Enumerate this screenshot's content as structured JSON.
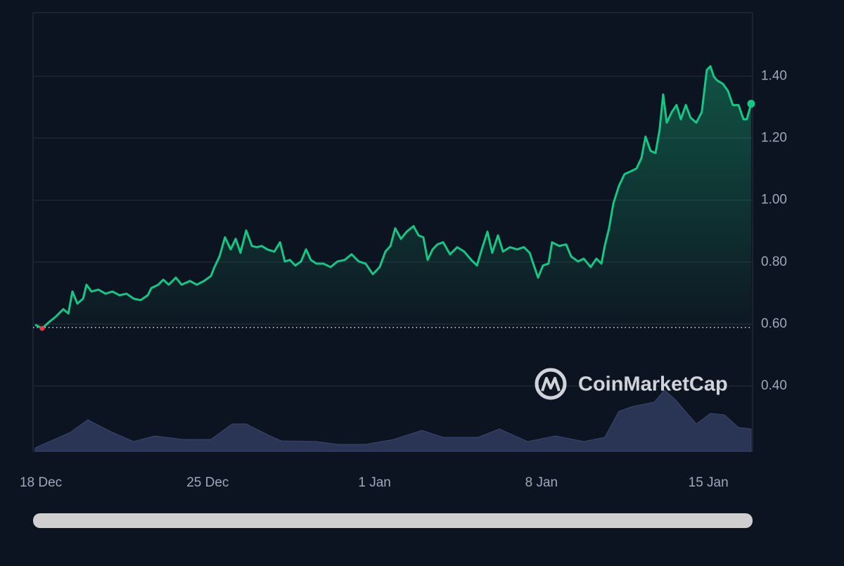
{
  "chart_data": {
    "type": "line",
    "area": true,
    "x": [
      0,
      0.29,
      0.59,
      0.88,
      1.18,
      1.39,
      1.56,
      1.77,
      2.01,
      2.15,
      2.36,
      2.65,
      2.95,
      3.24,
      3.54,
      3.83,
      4.13,
      4.42,
      4.72,
      4.87,
      5.16,
      5.37,
      5.6,
      5.9,
      6.14,
      6.49,
      6.78,
      7.08,
      7.37,
      7.52,
      7.73,
      7.96,
      8.2,
      8.41,
      8.61,
      8.85,
      9.09,
      9.29,
      9.5,
      9.73,
      10.03,
      10.27,
      10.47,
      10.68,
      10.91,
      11.15,
      11.36,
      11.56,
      11.8,
      12.09,
      12.39,
      12.68,
      12.98,
      13.27,
      13.57,
      13.86,
      14.16,
      14.45,
      14.69,
      14.9,
      15.1,
      15.34,
      15.58,
      15.87,
      16.08,
      16.28,
      16.46,
      16.67,
      16.87,
      17.11,
      17.4,
      17.7,
      17.99,
      18.29,
      18.53,
      18.73,
      18.97,
      19.17,
      19.41,
      19.62,
      19.91,
      20.21,
      20.5,
      20.74,
      20.94,
      21.09,
      21.3,
      21.53,
      21.68,
      21.98,
      22.27,
      22.48,
      22.77,
      23.01,
      23.3,
      23.54,
      23.75,
      23.89,
      24.07,
      24.25,
      24.48,
      24.72,
      24.93,
      25.22,
      25.43,
      25.6,
      25.81,
      26.02,
      26.19,
      26.34,
      26.49,
      26.7,
      26.9,
      27.08,
      27.29,
      27.49,
      27.73,
      27.96,
      28.17,
      28.32,
      28.47,
      28.61,
      28.85,
      29.06,
      29.26,
      29.5,
      29.71,
      29.85,
      30.03
    ],
    "series": [
      {
        "color": "#16c784",
        "values": [
          0.598,
          0.586,
          0.607,
          0.625,
          0.648,
          0.634,
          0.705,
          0.666,
          0.682,
          0.727,
          0.705,
          0.711,
          0.698,
          0.705,
          0.693,
          0.698,
          0.682,
          0.677,
          0.693,
          0.716,
          0.727,
          0.743,
          0.727,
          0.75,
          0.727,
          0.739,
          0.727,
          0.739,
          0.755,
          0.784,
          0.818,
          0.88,
          0.841,
          0.875,
          0.83,
          0.902,
          0.852,
          0.848,
          0.852,
          0.841,
          0.834,
          0.864,
          0.802,
          0.807,
          0.789,
          0.802,
          0.841,
          0.807,
          0.795,
          0.795,
          0.784,
          0.802,
          0.807,
          0.825,
          0.802,
          0.795,
          0.761,
          0.784,
          0.834,
          0.852,
          0.909,
          0.875,
          0.898,
          0.916,
          0.886,
          0.88,
          0.807,
          0.841,
          0.857,
          0.864,
          0.825,
          0.848,
          0.834,
          0.807,
          0.789,
          0.841,
          0.898,
          0.83,
          0.886,
          0.834,
          0.848,
          0.841,
          0.848,
          0.83,
          0.784,
          0.75,
          0.789,
          0.795,
          0.864,
          0.852,
          0.857,
          0.818,
          0.802,
          0.811,
          0.784,
          0.811,
          0.795,
          0.852,
          0.909,
          0.989,
          1.045,
          1.084,
          1.091,
          1.102,
          1.136,
          1.205,
          1.159,
          1.152,
          1.227,
          1.341,
          1.25,
          1.284,
          1.307,
          1.261,
          1.307,
          1.266,
          1.25,
          1.284,
          1.42,
          1.432,
          1.398,
          1.386,
          1.375,
          1.352,
          1.307,
          1.307,
          1.261,
          1.261,
          1.311
        ]
      }
    ],
    "reference_line": 0.589,
    "xlim": [
      -0.09,
      30.09
    ],
    "xticks": [
      {
        "value": 0,
        "label": "18 Dec"
      },
      {
        "value": 7,
        "label": "25 Dec"
      },
      {
        "value": 14,
        "label": "1 Jan"
      },
      {
        "value": 21,
        "label": "8 Jan"
      },
      {
        "value": 28,
        "label": "15 Jan"
      }
    ],
    "ylim": [
      0.189,
      1.605
    ],
    "yticks": [
      {
        "value": 0.4,
        "label": "0.40"
      },
      {
        "value": 0.6,
        "label": "0.60"
      },
      {
        "value": 0.8,
        "label": "0.80"
      },
      {
        "value": 1.0,
        "label": "1.00"
      },
      {
        "value": 1.2,
        "label": "1.20"
      },
      {
        "value": 1.4,
        "label": "1.40"
      }
    ],
    "grid": true,
    "volume": {
      "color": "#2a3556",
      "x": [
        0,
        1.47,
        2.21,
        2.65,
        3.24,
        4.13,
        5.01,
        6.19,
        7.37,
        8.26,
        8.85,
        9.73,
        10.32,
        11.8,
        12.68,
        13.86,
        15.04,
        16.22,
        17.11,
        18.58,
        19.47,
        20.65,
        21.83,
        23.01,
        23.89,
        24.48,
        25.07,
        25.96,
        26.4,
        26.84,
        27.73,
        28.32,
        28.91,
        29.5,
        30.03
      ],
      "values": [
        5,
        27,
        45,
        37,
        27,
        14,
        22,
        17,
        17,
        39,
        39,
        24,
        15,
        14,
        10,
        10,
        17,
        30,
        20,
        20,
        32,
        14,
        22,
        14,
        20,
        57,
        64,
        70,
        87,
        74,
        39,
        54,
        52,
        34,
        32
      ],
      "y2lim": [
        0,
        100
      ]
    },
    "watermark": "CoinMarketCap"
  }
}
